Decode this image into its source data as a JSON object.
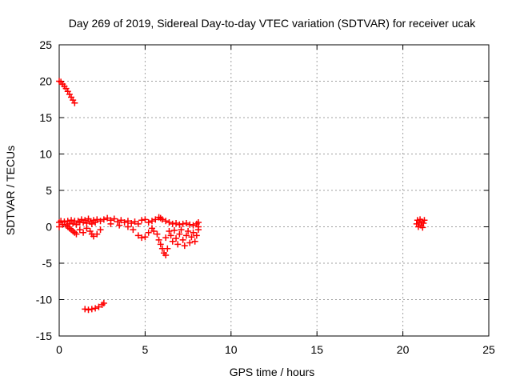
{
  "chart_data": {
    "type": "scatter",
    "title": "Day 269 of 2019, Sidereal Day-to-day VTEC variation (SDTVAR) for receiver ucak",
    "xlabel": "GPS time / hours",
    "ylabel": "SDTVAR / TECUs",
    "xlim": [
      0,
      25
    ],
    "ylim": [
      -15,
      25
    ],
    "xticks": [
      0,
      5,
      10,
      15,
      20,
      25
    ],
    "yticks": [
      -15,
      -10,
      -5,
      0,
      5,
      10,
      15,
      20,
      25
    ],
    "xtick_labels": [
      "0",
      "5",
      "10",
      "15",
      "20",
      "25"
    ],
    "ytick_labels": [
      "-15",
      "-10",
      "-5",
      "0",
      "5",
      "10",
      "15",
      "20",
      "25"
    ],
    "grid": true,
    "marker": "plus",
    "colors": {
      "series": "#ff0000",
      "grid": "#a0a0a0",
      "axis": "#000000"
    },
    "series": [
      {
        "name": "SDTVAR",
        "points": [
          [
            0.0,
            20.0
          ],
          [
            0.1,
            19.9
          ],
          [
            0.2,
            19.6
          ],
          [
            0.3,
            19.3
          ],
          [
            0.4,
            19.0
          ],
          [
            0.5,
            18.6
          ],
          [
            0.6,
            18.2
          ],
          [
            0.7,
            17.8
          ],
          [
            0.8,
            17.4
          ],
          [
            0.9,
            17.0
          ],
          [
            0.0,
            0.6
          ],
          [
            0.0,
            0.0
          ],
          [
            0.1,
            0.8
          ],
          [
            0.2,
            0.3
          ],
          [
            0.3,
            0.7
          ],
          [
            0.4,
            0.2
          ],
          [
            0.5,
            0.8
          ],
          [
            0.6,
            0.4
          ],
          [
            0.7,
            0.9
          ],
          [
            0.8,
            0.5
          ],
          [
            0.9,
            0.8
          ],
          [
            1.0,
            0.3
          ],
          [
            1.1,
            0.8
          ],
          [
            1.2,
            0.6
          ],
          [
            1.3,
            1.0
          ],
          [
            1.4,
            0.6
          ],
          [
            1.5,
            0.9
          ],
          [
            1.6,
            0.5
          ],
          [
            1.7,
            1.1
          ],
          [
            1.8,
            0.7
          ],
          [
            1.9,
            0.4
          ],
          [
            2.0,
            0.9
          ],
          [
            2.1,
            0.6
          ],
          [
            2.2,
            1.0
          ],
          [
            2.4,
            0.8
          ],
          [
            2.6,
            1.0
          ],
          [
            2.8,
            1.2
          ],
          [
            3.0,
            0.9
          ],
          [
            3.2,
            1.1
          ],
          [
            3.4,
            0.7
          ],
          [
            3.6,
            0.9
          ],
          [
            3.8,
            0.6
          ],
          [
            4.0,
            0.8
          ],
          [
            4.2,
            0.5
          ],
          [
            4.4,
            0.7
          ],
          [
            4.6,
            0.4
          ],
          [
            4.8,
            0.9
          ],
          [
            5.0,
            1.0
          ],
          [
            5.2,
            0.6
          ],
          [
            5.4,
            0.8
          ],
          [
            5.6,
            1.0
          ],
          [
            5.8,
            1.3
          ],
          [
            5.9,
            1.2
          ],
          [
            0.5,
            0.0
          ],
          [
            0.6,
            -0.2
          ],
          [
            0.7,
            -0.4
          ],
          [
            0.8,
            -0.6
          ],
          [
            0.9,
            -0.8
          ],
          [
            1.0,
            -1.0
          ],
          [
            1.2,
            -0.4
          ],
          [
            1.4,
            -0.8
          ],
          [
            1.6,
            -0.2
          ],
          [
            1.8,
            -0.6
          ],
          [
            1.9,
            -1.0
          ],
          [
            2.0,
            -1.3
          ],
          [
            2.2,
            -1.0
          ],
          [
            2.4,
            -0.4
          ],
          [
            3.0,
            0.4
          ],
          [
            3.5,
            0.2
          ],
          [
            4.0,
            0.0
          ],
          [
            4.3,
            -0.4
          ],
          [
            4.6,
            -1.2
          ],
          [
            4.8,
            -1.5
          ],
          [
            5.0,
            -1.4
          ],
          [
            5.2,
            -0.8
          ],
          [
            5.4,
            -0.2
          ],
          [
            5.5,
            -0.6
          ],
          [
            5.7,
            -1.0
          ],
          [
            5.8,
            -1.8
          ],
          [
            5.9,
            -2.4
          ],
          [
            6.0,
            -3.0
          ],
          [
            6.1,
            -3.6
          ],
          [
            6.2,
            -3.9
          ],
          [
            6.3,
            -3.0
          ],
          [
            6.2,
            -1.5
          ],
          [
            6.4,
            -0.6
          ],
          [
            6.5,
            -1.2
          ],
          [
            6.6,
            -2.0
          ],
          [
            6.7,
            -0.5
          ],
          [
            6.8,
            -1.6
          ],
          [
            6.9,
            -2.4
          ],
          [
            7.0,
            -1.0
          ],
          [
            7.1,
            -0.4
          ],
          [
            7.2,
            -1.8
          ],
          [
            7.3,
            -2.6
          ],
          [
            7.4,
            -1.2
          ],
          [
            7.5,
            -0.6
          ],
          [
            7.6,
            -2.2
          ],
          [
            7.7,
            -1.4
          ],
          [
            7.8,
            -0.8
          ],
          [
            7.9,
            -2.0
          ],
          [
            8.0,
            -1.2
          ],
          [
            8.1,
            -0.4
          ],
          [
            8.1,
            0.0
          ],
          [
            6.0,
            1.0
          ],
          [
            6.2,
            0.8
          ],
          [
            6.4,
            0.6
          ],
          [
            6.6,
            0.4
          ],
          [
            6.8,
            0.5
          ],
          [
            7.0,
            0.3
          ],
          [
            7.2,
            0.4
          ],
          [
            7.4,
            0.5
          ],
          [
            7.6,
            0.3
          ],
          [
            7.8,
            0.2
          ],
          [
            8.0,
            0.4
          ],
          [
            8.1,
            0.6
          ],
          [
            1.5,
            -11.3
          ],
          [
            1.7,
            -11.4
          ],
          [
            1.9,
            -11.3
          ],
          [
            2.1,
            -11.2
          ],
          [
            2.3,
            -11.0
          ],
          [
            2.5,
            -10.7
          ],
          [
            2.6,
            -10.5
          ],
          [
            20.8,
            0.4
          ],
          [
            20.85,
            0.9
          ],
          [
            20.9,
            0.0
          ],
          [
            20.95,
            0.6
          ],
          [
            21.0,
            1.0
          ],
          [
            21.05,
            0.2
          ],
          [
            21.1,
            0.7
          ],
          [
            21.15,
            -0.1
          ],
          [
            21.2,
            0.5
          ],
          [
            21.25,
            0.9
          ]
        ]
      }
    ]
  }
}
